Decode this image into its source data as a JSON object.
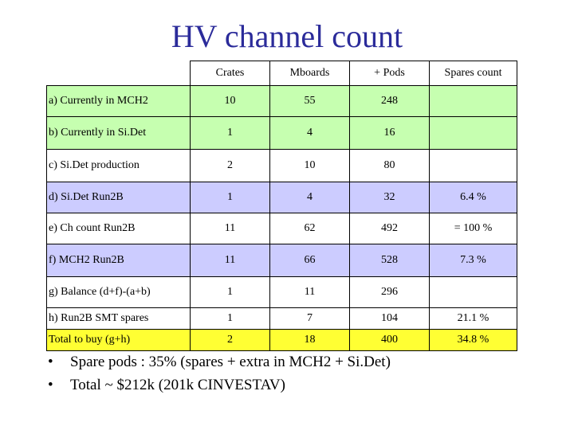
{
  "title": "HV channel count",
  "table": {
    "headers": [
      "",
      "Crates",
      "Mboards",
      "+ Pods",
      "Spares count"
    ],
    "rows": [
      {
        "label": "a) Currently in MCH2",
        "crates": "10",
        "mboards": "55",
        "pods": "248",
        "spares": "",
        "color": "green"
      },
      {
        "label": "b) Currently in Si.Det",
        "crates": "1",
        "mboards": "4",
        "pods": "16",
        "spares": "",
        "color": "green"
      },
      {
        "label": "c) Si.Det production",
        "crates": "2",
        "mboards": "10",
        "pods": "80",
        "spares": "",
        "color": "white"
      },
      {
        "label": "d) Si.Det Run2B",
        "crates": "1",
        "mboards": "4",
        "pods": "32",
        "spares": "6.4 %",
        "color": "lav"
      },
      {
        "label": "e) Ch count Run2B",
        "crates": "11",
        "mboards": "62",
        "pods": "492",
        "spares": "= 100 %",
        "color": "white"
      },
      {
        "label": "f) MCH2 Run2B",
        "crates": "11",
        "mboards": "66",
        "pods": "528",
        "spares": "7.3 %",
        "color": "lav"
      },
      {
        "label": "g) Balance (d+f)-(a+b)",
        "crates": "1",
        "mboards": "11",
        "pods": "296",
        "spares": "",
        "color": "white"
      },
      {
        "label": "h) Run2B SMT spares",
        "crates": "1",
        "mboards": "7",
        "pods": "104",
        "spares": "21.1 %",
        "color": "white"
      },
      {
        "label": "Total to buy (g+h)",
        "crates": "2",
        "mboards": "18",
        "pods": "400",
        "spares": "34.8 %",
        "color": "yellow"
      }
    ]
  },
  "bullets": [
    "Spare pods : 35% (spares + extra in MCH2 + Si.Det)",
    "Total ~ $212k  (201k CINVESTAV)"
  ]
}
